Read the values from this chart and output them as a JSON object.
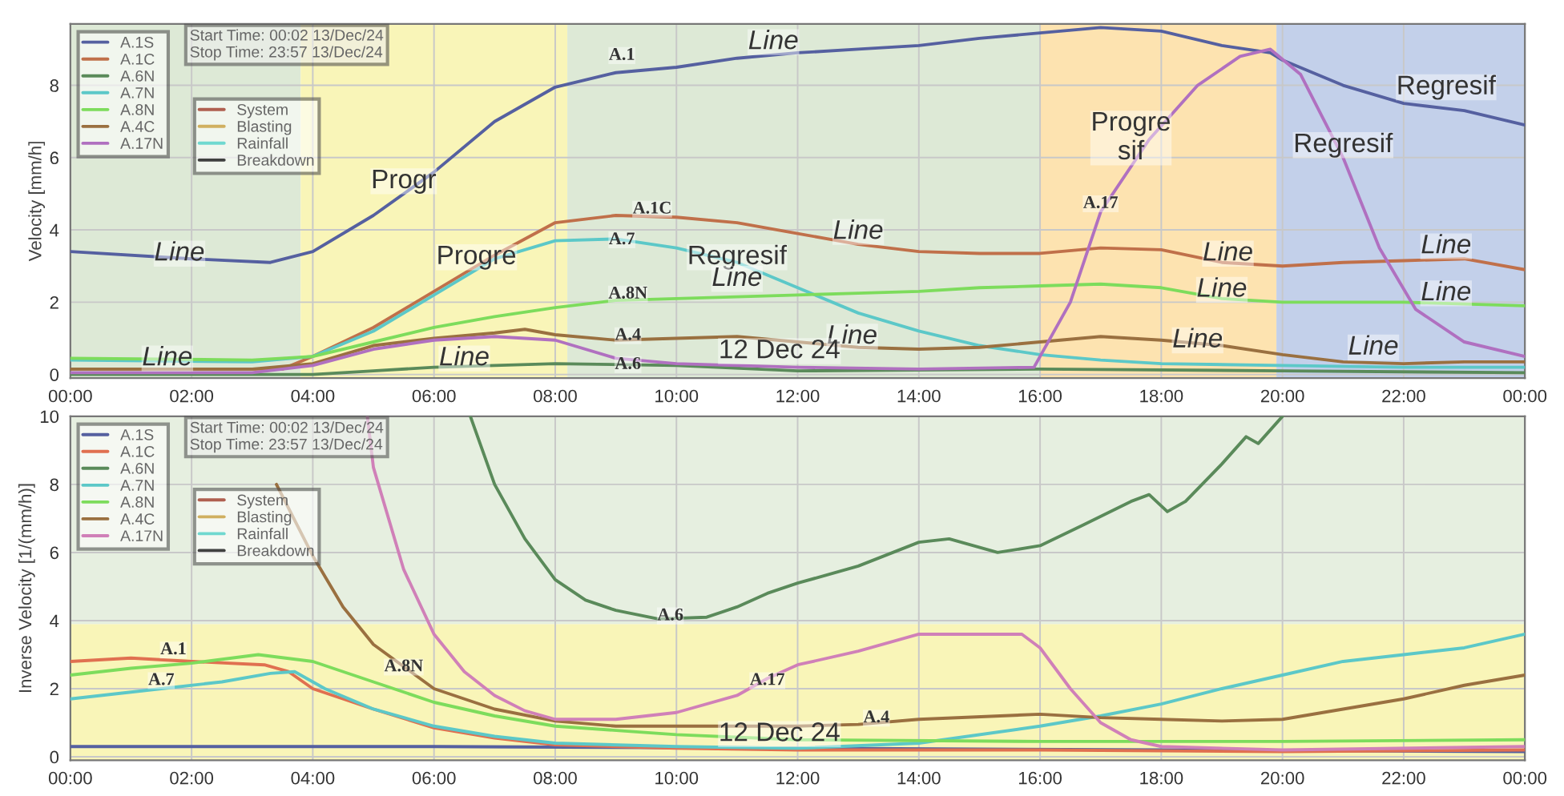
{
  "chart_data": [
    {
      "type": "line",
      "ylabel": "Velocity [mm/h]",
      "xlim": [
        0,
        24
      ],
      "ylim": [
        -0.1,
        9.7
      ],
      "yticks": [
        0,
        2,
        4,
        6,
        8
      ],
      "xticks": [
        {
          "value": 0,
          "label": "00:00"
        },
        {
          "value": 2,
          "label": "02:00"
        },
        {
          "value": 4,
          "label": "04:00"
        },
        {
          "value": 6,
          "label": "06:00"
        },
        {
          "value": 8,
          "label": "08:00"
        },
        {
          "value": 10,
          "label": "10:00"
        },
        {
          "value": 12,
          "label": "12:00"
        },
        {
          "value": 14,
          "label": "14:00"
        },
        {
          "value": 16,
          "label": "16:00"
        },
        {
          "value": 18,
          "label": "18:00"
        },
        {
          "value": 20,
          "label": "20:00"
        },
        {
          "value": 22,
          "label": "22:00"
        },
        {
          "value": 24,
          "label": "00:00"
        }
      ],
      "grid": true,
      "legend": "top left",
      "bands": [
        {
          "axis": "x",
          "from": 0,
          "to": 3.8,
          "color": "#dde9d6"
        },
        {
          "axis": "x",
          "from": 3.8,
          "to": 8.2,
          "color": "#f9f5b8"
        },
        {
          "axis": "x",
          "from": 8.2,
          "to": 16,
          "color": "#dde9d6"
        },
        {
          "axis": "x",
          "from": 16,
          "to": 19.9,
          "color": "#fde3b0"
        },
        {
          "axis": "x",
          "from": 19.9,
          "to": 24,
          "color": "#c3d0ea"
        }
      ],
      "series": [
        {
          "name": "A.1S",
          "color": "#5560a0",
          "x": [
            0,
            2,
            3.3,
            4,
            5,
            6,
            7,
            8,
            9,
            10,
            11,
            12,
            13,
            14,
            15,
            16,
            17,
            18,
            19,
            19.8,
            20,
            21,
            22,
            23,
            24
          ],
          "values": [
            3.4,
            3.2,
            3.1,
            3.4,
            4.4,
            5.6,
            7.0,
            7.95,
            8.35,
            8.5,
            8.75,
            8.9,
            9.0,
            9.1,
            9.3,
            9.45,
            9.6,
            9.5,
            9.1,
            8.9,
            8.7,
            8.0,
            7.5,
            7.3,
            6.9
          ]
        },
        {
          "name": "A.1C",
          "color": "#c0704a",
          "x": [
            0,
            3.5,
            4,
            5,
            6,
            7,
            8,
            9,
            10,
            11,
            12,
            13,
            14,
            15,
            16,
            17,
            18,
            19,
            20,
            21,
            22,
            23,
            24
          ],
          "values": [
            0.15,
            0.15,
            0.5,
            1.3,
            2.3,
            3.3,
            4.2,
            4.4,
            4.35,
            4.2,
            3.9,
            3.6,
            3.4,
            3.35,
            3.35,
            3.5,
            3.45,
            3.1,
            3.0,
            3.1,
            3.15,
            3.2,
            2.9
          ]
        },
        {
          "name": "A.6N",
          "color": "#5a8a5a",
          "x": [
            0,
            4,
            5,
            6,
            8,
            10,
            12,
            16,
            20,
            24
          ],
          "values": [
            0.0,
            0.0,
            0.1,
            0.2,
            0.3,
            0.25,
            0.1,
            0.15,
            0.1,
            0.05
          ]
        },
        {
          "name": "A.7N",
          "color": "#5cc8c8",
          "x": [
            0,
            3,
            4,
            5,
            6,
            7,
            8,
            9,
            10,
            11,
            12,
            13,
            14,
            15,
            16,
            17,
            18,
            20,
            22,
            24
          ],
          "values": [
            0.4,
            0.35,
            0.5,
            1.2,
            2.2,
            3.2,
            3.7,
            3.75,
            3.5,
            3.1,
            2.4,
            1.7,
            1.2,
            0.8,
            0.55,
            0.4,
            0.3,
            0.25,
            0.2,
            0.2
          ]
        },
        {
          "name": "A.8N",
          "color": "#7ddc5c",
          "x": [
            0,
            3,
            4,
            5,
            6,
            7,
            8,
            9,
            10,
            11,
            12,
            13,
            14,
            15,
            16,
            17,
            18,
            19,
            20,
            22,
            24
          ],
          "values": [
            0.45,
            0.4,
            0.5,
            0.9,
            1.3,
            1.6,
            1.85,
            2.05,
            2.1,
            2.15,
            2.2,
            2.25,
            2.3,
            2.4,
            2.45,
            2.5,
            2.4,
            2.1,
            2.0,
            2.0,
            1.9
          ]
        },
        {
          "name": "A.4C",
          "color": "#9a7040",
          "x": [
            0,
            3,
            4,
            5,
            6,
            7,
            7.5,
            8,
            9,
            10,
            11,
            12,
            13,
            14,
            15,
            16,
            17,
            18,
            19,
            20,
            21,
            22,
            23,
            24
          ],
          "values": [
            0.15,
            0.15,
            0.3,
            0.8,
            1.0,
            1.15,
            1.25,
            1.1,
            0.95,
            1.0,
            1.05,
            0.9,
            0.75,
            0.7,
            0.75,
            0.9,
            1.05,
            0.95,
            0.8,
            0.55,
            0.35,
            0.3,
            0.35,
            0.35
          ]
        },
        {
          "name": "A.17N",
          "color": "#b070c0",
          "x": [
            0,
            3,
            4,
            5,
            6,
            7,
            8,
            9,
            10,
            11,
            12,
            14,
            15.9,
            16.5,
            17,
            17.8,
            18.6,
            19.3,
            19.8,
            20.3,
            21,
            21.6,
            22.2,
            23,
            24
          ],
          "values": [
            0.05,
            0.05,
            0.25,
            0.7,
            0.95,
            1.05,
            0.95,
            0.45,
            0.3,
            0.25,
            0.2,
            0.15,
            0.2,
            2.0,
            4.5,
            6.5,
            8.0,
            8.8,
            9.0,
            8.3,
            6.0,
            3.5,
            1.8,
            0.9,
            0.5
          ]
        },
        {
          "name": "System",
          "color": "#b06050"
        },
        {
          "name": "Blasting",
          "color": "#d0b060"
        },
        {
          "name": "Rainfall",
          "color": "#70d8d0"
        },
        {
          "name": "Breakdown",
          "color": "#404040"
        }
      ],
      "annotations": [
        "Start Time: 00:02 13/Dec/24\nStop Time: 23:57 13/Dec/24",
        {
          "text": "A.1",
          "x": 9.1,
          "y": 8.6
        },
        {
          "text": "Line",
          "x": 11.6,
          "y": 8.85
        },
        {
          "text": "Progr",
          "x": 5.5,
          "y": 5.0
        },
        {
          "text": "Line",
          "x": 1.8,
          "y": 3.0
        },
        {
          "text": "Progre",
          "x": 6.7,
          "y": 2.9
        },
        {
          "text": "A.1C",
          "x": 9.6,
          "y": 4.35
        },
        {
          "text": "A.7",
          "x": 9.1,
          "y": 3.5
        },
        {
          "text": "Regresif",
          "x": 11.0,
          "y": 2.9
        },
        {
          "text": "A.8N",
          "x": 9.2,
          "y": 2.0
        },
        {
          "text": "Line",
          "x": 11.0,
          "y": 2.3
        },
        {
          "text": "Line",
          "x": 13,
          "y": 3.6
        },
        {
          "text": "Line",
          "x": 12.9,
          "y": 0.7
        },
        {
          "text": "A.4",
          "x": 9.2,
          "y": 0.85
        },
        {
          "text": "A.6",
          "x": 9.2,
          "y": 0.05
        },
        {
          "text": "Line",
          "x": 1.6,
          "y": 0.1
        },
        {
          "text": "Line",
          "x": 6.5,
          "y": 0.1
        },
        {
          "text": "Progre\nsif",
          "x": 17.5,
          "y": 5.8
        },
        {
          "text": "A.17",
          "x": 17,
          "y": 4.5
        },
        {
          "text": "Regresif",
          "x": 22.7,
          "y": 7.6
        },
        {
          "text": "Regresif",
          "x": 21,
          "y": 6.0
        },
        {
          "text": "Line",
          "x": 19.1,
          "y": 3.0
        },
        {
          "text": "Line",
          "x": 19.0,
          "y": 2.0
        },
        {
          "text": "Line",
          "x": 18.6,
          "y": 0.6
        },
        {
          "text": "Line",
          "x": 22.7,
          "y": 3.2
        },
        {
          "text": "Line",
          "x": 22.7,
          "y": 1.9
        },
        {
          "text": "Line",
          "x": 21.5,
          "y": 0.4
        },
        {
          "text": "12 Dec 24",
          "x": 11.7,
          "y": 0.3
        }
      ]
    },
    {
      "type": "line",
      "ylabel": "Inverse Velocity [1/(mm/h)]",
      "xlim": [
        0,
        24
      ],
      "ylim": [
        -0.1,
        10
      ],
      "yticks": [
        0,
        2,
        4,
        6,
        8,
        10
      ],
      "xticks": [
        {
          "value": 0,
          "label": "00:00"
        },
        {
          "value": 2,
          "label": "02:00"
        },
        {
          "value": 4,
          "label": "04:00"
        },
        {
          "value": 6,
          "label": "06:00"
        },
        {
          "value": 8,
          "label": "08:00"
        },
        {
          "value": 10,
          "label": "10:00"
        },
        {
          "value": 12,
          "label": "12:00"
        },
        {
          "value": 14,
          "label": "14:00"
        },
        {
          "value": 16,
          "label": "16:00"
        },
        {
          "value": 18,
          "label": "18:00"
        },
        {
          "value": 20,
          "label": "20:00"
        },
        {
          "value": 22,
          "label": "22:00"
        },
        {
          "value": 24,
          "label": "00:00"
        }
      ],
      "grid": true,
      "legend": "top left",
      "bands": [
        {
          "axis": "y",
          "from": -0.1,
          "to": 3.9,
          "color": "#f9f5b8"
        },
        {
          "axis": "y",
          "from": 3.9,
          "to": 10,
          "color": "#e6efe0"
        }
      ],
      "series": [
        {
          "name": "A.1S",
          "color": "#5560a0",
          "x": [
            0,
            6,
            12,
            18,
            24
          ],
          "values": [
            0.3,
            0.3,
            0.25,
            0.2,
            0.15
          ]
        },
        {
          "name": "A.1C",
          "color": "#e07050",
          "x": [
            0,
            1,
            2,
            3.2,
            3.6,
            4,
            5,
            6,
            7,
            8,
            10,
            12,
            16,
            20,
            24
          ],
          "values": [
            2.8,
            2.9,
            2.8,
            2.7,
            2.5,
            2.0,
            1.4,
            0.85,
            0.55,
            0.35,
            0.25,
            0.2,
            0.2,
            0.15,
            0.2
          ]
        },
        {
          "name": "A.6N",
          "color": "#5a8a5a",
          "x": [
            6.6,
            7,
            7.5,
            8,
            8.5,
            9,
            9.7,
            10.5,
            11,
            11.5,
            12,
            13,
            14,
            14.5,
            15.3,
            16,
            16.7,
            17.5,
            17.8,
            18.1,
            18.4,
            19,
            19.4,
            19.6,
            20
          ],
          "values": [
            10,
            8,
            6.4,
            5.2,
            4.6,
            4.3,
            4.05,
            4.1,
            4.4,
            4.8,
            5.1,
            5.6,
            6.3,
            6.4,
            6.0,
            6.2,
            6.8,
            7.5,
            7.7,
            7.2,
            7.5,
            8.6,
            9.4,
            9.2,
            10
          ]
        },
        {
          "name": "A.7N",
          "color": "#5cc8c8",
          "x": [
            0,
            1.5,
            2.5,
            3.3,
            3.7,
            4.2,
            5,
            6,
            7,
            8,
            10,
            12,
            14,
            16,
            17,
            18,
            19,
            20,
            21,
            22,
            23,
            24
          ],
          "values": [
            1.7,
            2.0,
            2.2,
            2.45,
            2.5,
            2.0,
            1.4,
            0.9,
            0.6,
            0.4,
            0.3,
            0.25,
            0.4,
            0.9,
            1.2,
            1.55,
            2.0,
            2.4,
            2.8,
            3.0,
            3.2,
            3.6
          ]
        },
        {
          "name": "A.8N",
          "color": "#7ddc5c",
          "x": [
            0,
            1,
            2,
            3.1,
            4,
            5,
            6,
            7,
            8,
            10,
            12,
            16,
            20,
            24
          ],
          "values": [
            2.4,
            2.6,
            2.75,
            3.0,
            2.8,
            2.2,
            1.6,
            1.2,
            0.9,
            0.65,
            0.5,
            0.45,
            0.45,
            0.5
          ]
        },
        {
          "name": "A.4C",
          "color": "#9a7040",
          "x": [
            3.4,
            4,
            4.5,
            5,
            6,
            7,
            8,
            9,
            10,
            12,
            13,
            14,
            16,
            17,
            18,
            19,
            20,
            21,
            22,
            23,
            24
          ],
          "values": [
            8.0,
            5.9,
            4.4,
            3.3,
            2.0,
            1.4,
            1.05,
            0.9,
            0.9,
            0.9,
            0.95,
            1.1,
            1.25,
            1.15,
            1.1,
            1.05,
            1.1,
            1.4,
            1.7,
            2.1,
            2.4
          ]
        },
        {
          "name": "A.17N",
          "color": "#d080b8",
          "x": [
            4.9,
            5,
            5.5,
            6,
            6.5,
            7,
            7.5,
            8,
            9,
            10,
            11,
            11.5,
            12,
            13,
            14,
            15,
            15.7,
            16,
            16.5,
            17,
            17.5,
            18,
            20,
            24
          ],
          "values": [
            10,
            8.5,
            5.5,
            3.6,
            2.5,
            1.8,
            1.35,
            1.1,
            1.1,
            1.3,
            1.8,
            2.3,
            2.7,
            3.1,
            3.6,
            3.6,
            3.6,
            3.2,
            2.0,
            1.0,
            0.5,
            0.3,
            0.2,
            0.3
          ]
        },
        {
          "name": "System",
          "color": "#b06050"
        },
        {
          "name": "Blasting",
          "color": "#d0b060"
        },
        {
          "name": "Rainfall",
          "color": "#70d8d0"
        },
        {
          "name": "Breakdown",
          "color": "#404040"
        }
      ],
      "annotations": [
        "Start Time: 00:02 13/Dec/24\nStop Time: 23:57 13/Dec/24",
        {
          "text": "A.1",
          "x": 1.7,
          "y": 2.9
        },
        {
          "text": "A.7",
          "x": 1.5,
          "y": 2.0
        },
        {
          "text": "A.8N",
          "x": 5.5,
          "y": 2.4
        },
        {
          "text": "A.6",
          "x": 9.9,
          "y": 3.9
        },
        {
          "text": "A.17",
          "x": 11.5,
          "y": 2.0
        },
        {
          "text": "A.4",
          "x": 13.3,
          "y": 0.9
        },
        {
          "text": "12 Dec 24",
          "x": 11.7,
          "y": 0.3
        }
      ]
    }
  ]
}
